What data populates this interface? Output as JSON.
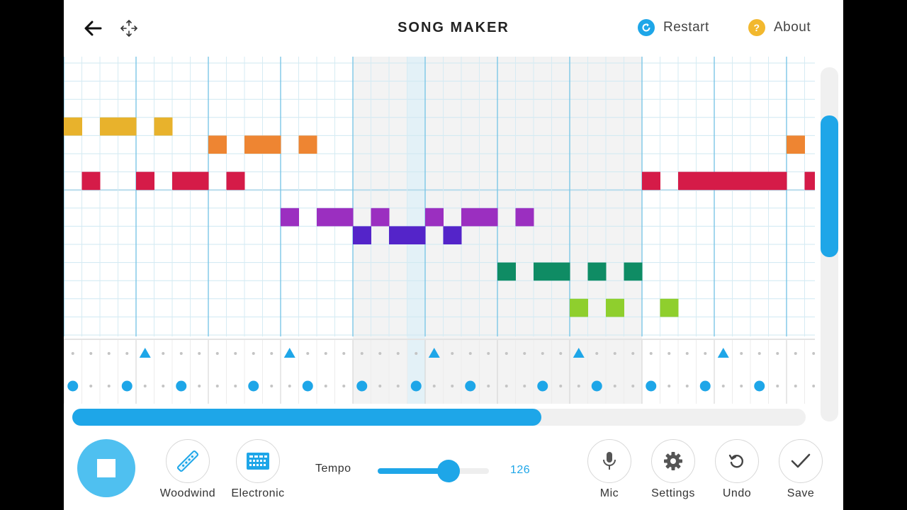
{
  "header": {
    "title": "SONG MAKER",
    "restart_label": "Restart",
    "about_label": "About"
  },
  "colors": {
    "accent": "#1ea6e8",
    "restart_icon": "#1ea6e8",
    "about_icon": "#f2b82e",
    "notes": {
      "yellow": "#e8b22c",
      "orange": "#ee8532",
      "red": "#d51b48",
      "purple": "#9b2fc0",
      "indigo": "#5424c9",
      "green": "#0f8c64",
      "lime": "#8fcf2d"
    }
  },
  "melody": {
    "columns": 42,
    "rows": 15,
    "playhead_column": 19,
    "notes": [
      {
        "col": 0,
        "row": 3,
        "color": "yellow"
      },
      {
        "col": 2,
        "row": 3,
        "color": "yellow"
      },
      {
        "col": 3,
        "row": 3,
        "color": "yellow"
      },
      {
        "col": 5,
        "row": 3,
        "color": "yellow"
      },
      {
        "col": 8,
        "row": 4,
        "color": "orange"
      },
      {
        "col": 10,
        "row": 4,
        "color": "orange"
      },
      {
        "col": 11,
        "row": 4,
        "color": "orange"
      },
      {
        "col": 13,
        "row": 4,
        "color": "orange"
      },
      {
        "col": 40,
        "row": 4,
        "color": "orange"
      },
      {
        "col": 1,
        "row": 6,
        "color": "red"
      },
      {
        "col": 4,
        "row": 6,
        "color": "red"
      },
      {
        "col": 6,
        "row": 6,
        "color": "red"
      },
      {
        "col": 7,
        "row": 6,
        "color": "red"
      },
      {
        "col": 9,
        "row": 6,
        "color": "red"
      },
      {
        "col": 32,
        "row": 6,
        "color": "red"
      },
      {
        "col": 34,
        "row": 6,
        "color": "red"
      },
      {
        "col": 35,
        "row": 6,
        "color": "red"
      },
      {
        "col": 36,
        "row": 6,
        "color": "red"
      },
      {
        "col": 37,
        "row": 6,
        "color": "red"
      },
      {
        "col": 38,
        "row": 6,
        "color": "red"
      },
      {
        "col": 39,
        "row": 6,
        "color": "red"
      },
      {
        "col": 41,
        "row": 6,
        "color": "red"
      },
      {
        "col": 12,
        "row": 8,
        "color": "purple"
      },
      {
        "col": 14,
        "row": 8,
        "color": "purple"
      },
      {
        "col": 15,
        "row": 8,
        "color": "purple"
      },
      {
        "col": 17,
        "row": 8,
        "color": "purple"
      },
      {
        "col": 20,
        "row": 8,
        "color": "purple"
      },
      {
        "col": 22,
        "row": 8,
        "color": "purple"
      },
      {
        "col": 23,
        "row": 8,
        "color": "purple"
      },
      {
        "col": 25,
        "row": 8,
        "color": "purple"
      },
      {
        "col": 16,
        "row": 9,
        "color": "indigo"
      },
      {
        "col": 18,
        "row": 9,
        "color": "indigo"
      },
      {
        "col": 19,
        "row": 9,
        "color": "indigo"
      },
      {
        "col": 21,
        "row": 9,
        "color": "indigo"
      },
      {
        "col": 24,
        "row": 11,
        "color": "green"
      },
      {
        "col": 26,
        "row": 11,
        "color": "green"
      },
      {
        "col": 27,
        "row": 11,
        "color": "green"
      },
      {
        "col": 29,
        "row": 11,
        "color": "green"
      },
      {
        "col": 31,
        "row": 11,
        "color": "green"
      },
      {
        "col": 28,
        "row": 13,
        "color": "lime"
      },
      {
        "col": 30,
        "row": 13,
        "color": "lime"
      },
      {
        "col": 33,
        "row": 13,
        "color": "lime"
      }
    ]
  },
  "rhythm": {
    "triangles": [
      4,
      12,
      20,
      28,
      36
    ],
    "circles": [
      0,
      3,
      6,
      10,
      13,
      16,
      19,
      22,
      26,
      29,
      32,
      35,
      38
    ]
  },
  "song_progress": 0.64,
  "toolbar": {
    "instrument1_label": "Woodwind",
    "instrument2_label": "Electronic",
    "tempo_label": "Tempo",
    "tempo_value": "126",
    "tempo_fraction": 0.64,
    "mic_label": "Mic",
    "settings_label": "Settings",
    "undo_label": "Undo",
    "save_label": "Save"
  },
  "icons": [
    "back-arrow-icon",
    "move-icon",
    "restart-icon",
    "about-icon",
    "stop-icon",
    "woodwind-icon",
    "electronic-icon",
    "mic-icon",
    "gear-icon",
    "undo-icon",
    "check-icon"
  ]
}
